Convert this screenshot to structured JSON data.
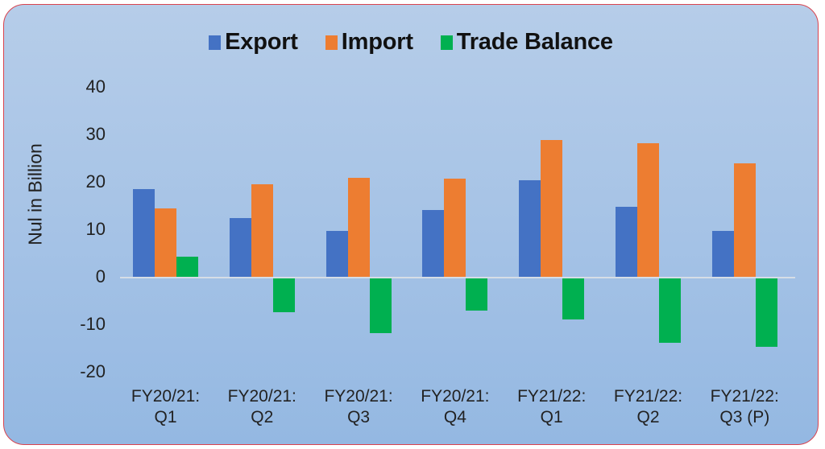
{
  "chart_data": {
    "type": "bar",
    "title": "",
    "xlabel": "",
    "ylabel": "Nul in Billion",
    "ylim": [
      -20,
      40
    ],
    "yticks": [
      40,
      30,
      20,
      10,
      0,
      -10,
      -20
    ],
    "grid": false,
    "legend_position": "top",
    "categories": [
      "FY20/21: Q1",
      "FY20/21: Q2",
      "FY20/21: Q3",
      "FY20/21: Q4",
      "FY21/22: Q1",
      "FY21/22: Q2",
      "FY21/22: Q3 (P)"
    ],
    "category_lines": [
      [
        "FY20/21:",
        "Q1"
      ],
      [
        "FY20/21:",
        "Q2"
      ],
      [
        "FY20/21:",
        "Q3"
      ],
      [
        "FY20/21:",
        "Q4"
      ],
      [
        "FY21/22:",
        "Q1"
      ],
      [
        "FY21/22:",
        "Q2"
      ],
      [
        "FY21/22:",
        "Q3 (P)"
      ]
    ],
    "series": [
      {
        "name": "Export",
        "color": "#4472c4",
        "values": [
          18.5,
          12.4,
          9.7,
          14.0,
          20.3,
          14.7,
          9.7
        ]
      },
      {
        "name": "Import",
        "color": "#ed7d31",
        "values": [
          14.4,
          19.5,
          20.8,
          20.7,
          28.8,
          28.1,
          23.9
        ]
      },
      {
        "name": "Trade Balance",
        "color": "#00b050",
        "values": [
          4.2,
          -7.1,
          -11.5,
          -6.8,
          -8.6,
          -13.5,
          -14.4
        ]
      }
    ]
  },
  "legend": [
    {
      "label": "Export",
      "color": "#4472c4"
    },
    {
      "label": "Import",
      "color": "#ed7d31"
    },
    {
      "label": "Trade Balance",
      "color": "#00b050"
    }
  ]
}
